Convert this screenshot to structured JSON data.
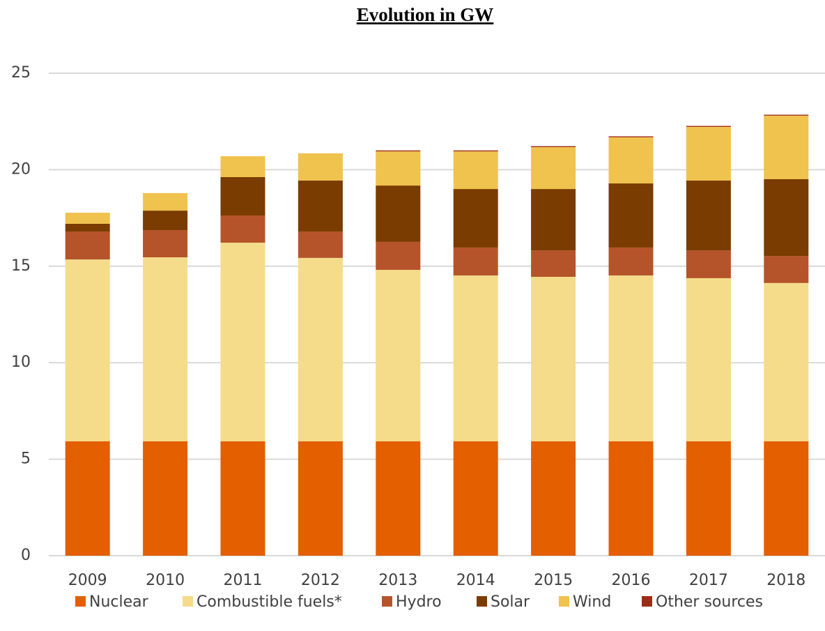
{
  "chart_data": {
    "type": "stacked_bar",
    "title": "Evolution in GW",
    "categories": [
      "2009",
      "2010",
      "2011",
      "2012",
      "2013",
      "2014",
      "2015",
      "2016",
      "2017",
      "2018"
    ],
    "series": [
      {
        "name": "Nuclear",
        "color": "#e35f00",
        "values": [
          5.93,
          5.93,
          5.93,
          5.93,
          5.93,
          5.93,
          5.93,
          5.93,
          5.93,
          5.93
        ]
      },
      {
        "name": "Combustible fuels*",
        "color": "#f5dc8a",
        "values": [
          9.42,
          9.53,
          10.29,
          9.5,
          8.88,
          8.59,
          8.52,
          8.59,
          8.45,
          8.2
        ]
      },
      {
        "name": "Hydro",
        "color": "#b5542a",
        "values": [
          1.45,
          1.41,
          1.41,
          1.37,
          1.45,
          1.45,
          1.37,
          1.45,
          1.44,
          1.4
        ]
      },
      {
        "name": "Solar",
        "color": "#7a3c00",
        "values": [
          0.4,
          1.01,
          1.99,
          2.64,
          2.92,
          3.03,
          3.18,
          3.32,
          3.62,
          3.98
        ]
      },
      {
        "name": "Wind",
        "color": "#f0c24e",
        "values": [
          0.57,
          0.91,
          1.08,
          1.41,
          1.77,
          1.95,
          2.17,
          2.39,
          2.78,
          3.29
        ]
      },
      {
        "name": "Other sources",
        "color": "#a02b14",
        "values": [
          0,
          0,
          0,
          0,
          0.05,
          0.05,
          0.05,
          0.05,
          0.05,
          0.05
        ]
      }
    ],
    "ylim": [
      0,
      25
    ],
    "yticks": [
      0,
      5,
      10,
      15,
      20,
      25
    ],
    "grid": true,
    "legend": "bottom"
  }
}
